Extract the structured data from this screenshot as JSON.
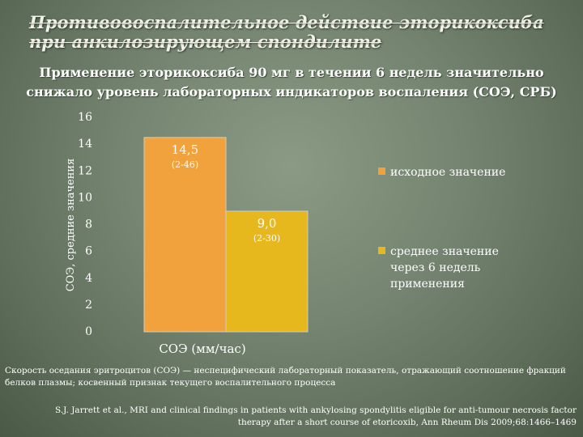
{
  "slide": {
    "title": "Противовоспалительное действие эторикоксиба при анкилозирующем спондилите",
    "subtitle": "Применение эторикоксиба 90 мг в течении 6 недель значительно снижало уровень лабораторных индикаторов воспаления (СОЭ, СРБ)",
    "footnote": "Скорость оседания эритроцитов (СОЭ) — неспецифический лабораторный показатель, отражающий соотношение фракций белков плазмы; косвенный признак текущего воспалительного процесса",
    "citation": "S.J. Jarrett et al., MRI and clinical findings in patients with ankylosing spondylitis eligible for anti-tumour necrosis factor therapy after a short course of etoricoxib, Ann Rheum Dis 2009;68:1466–1469"
  },
  "chart_data": {
    "type": "bar",
    "categories": [
      "СОЭ (мм/час)"
    ],
    "ylabel": "СОЭ, средние значения",
    "ylim": [
      0,
      16
    ],
    "yticks": [
      0,
      2,
      4,
      6,
      8,
      10,
      12,
      14,
      16
    ],
    "grid": false,
    "legend_position": "right",
    "series": [
      {
        "name": "исходное значение",
        "values": [
          14.5
        ],
        "value_label": "14,5",
        "range_label": "(2-46)",
        "color": "#f2a23c"
      },
      {
        "name": "среднее значение через 6 недель применения",
        "values": [
          9.0
        ],
        "value_label": "9,0",
        "range_label": "(2-30)",
        "color": "#e6b81e"
      }
    ]
  }
}
